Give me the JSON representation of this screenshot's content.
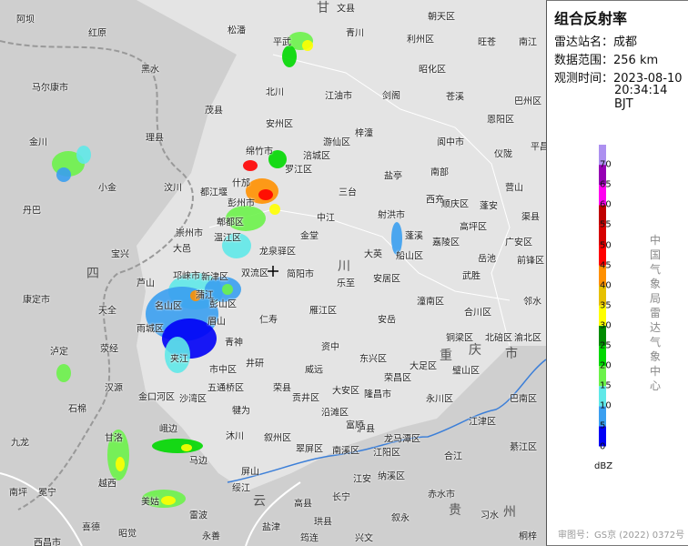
{
  "panel": {
    "title": "组合反射率",
    "station_label": "雷达站名：",
    "station": "成都",
    "range_label": "数据范围：",
    "range": "256 km",
    "time_label": "观测时间：",
    "date": "2023-08-10",
    "time": "20:34:14 BJT",
    "agency": "中国气象局雷达气象中心",
    "unit": "dBZ",
    "approval": "审图号：GS京 (2022) 0372号"
  },
  "legend": {
    "ticks": [
      "0",
      "5",
      "10",
      "15",
      "20",
      "25",
      "30",
      "35",
      "40",
      "45",
      "50",
      "55",
      "60",
      "65",
      "70"
    ],
    "colors": [
      "#0000f6",
      "#3a9ff0",
      "#5fe8e8",
      "#6cf24a",
      "#00d800",
      "#008c00",
      "#ffff00",
      "#e6c000",
      "#ff9000",
      "#ff0000",
      "#d60000",
      "#c00000",
      "#ff00f0",
      "#9600b4",
      "#ad90f0"
    ]
  },
  "map": {
    "provinces": [
      "甘",
      "四",
      "川",
      "重",
      "庆",
      "市",
      "云",
      "贵",
      "州"
    ],
    "cities": [
      "阿坝",
      "红原",
      "松潘",
      "平武",
      "青川",
      "朝天区",
      "利州区",
      "旺苍",
      "南江",
      "黑水",
      "北川",
      "江油市",
      "剑阁",
      "昭化区",
      "苍溪",
      "巴州区",
      "马尔康市",
      "茂县",
      "安州区",
      "梓潼",
      "恩阳区",
      "金川",
      "理县",
      "绵竹市",
      "涪城区",
      "游仙区",
      "阆中市",
      "仪陇",
      "平昌",
      "小金",
      "汶川",
      "什邡",
      "罗江区",
      "盐亭",
      "南部",
      "营山",
      "丹巴",
      "都江堰",
      "彭州市",
      "中江",
      "三台",
      "西充",
      "蓬安",
      "渠县",
      "郫都区",
      "射洪市",
      "顺庆区",
      "高坪区",
      "崇州市",
      "温江区",
      "金堂",
      "蓬溪",
      "嘉陵区",
      "广安区",
      "大邑",
      "龙泉驿区",
      "大英",
      "船山区",
      "岳池",
      "前锋区",
      "宝兴",
      "邛崃市",
      "新津区",
      "双流区",
      "简阳市",
      "乐至",
      "安居区",
      "武胜",
      "芦山",
      "蒲江",
      "邻水",
      "康定市",
      "天全",
      "名山区",
      "彭山区",
      "仁寿",
      "雁江区",
      "安岳",
      "潼南区",
      "合川区",
      "北碚区",
      "雨城区",
      "眉山",
      "青神",
      "资中",
      "铜梁区",
      "渝北区",
      "泸定",
      "荥经",
      "东兴区",
      "夹江",
      "井研",
      "市中区",
      "大足区",
      "璧山区",
      "汉源",
      "五通桥区",
      "荣县",
      "威远",
      "贡井区",
      "隆昌市",
      "荣昌区",
      "金口河区",
      "沙湾区",
      "大安区",
      "永川区",
      "巴南区",
      "石棉",
      "犍为",
      "沿滩区",
      "江津区",
      "富顺",
      "九龙",
      "甘洛",
      "峨边",
      "沐川",
      "叙州区",
      "泸县",
      "马边",
      "翠屏区",
      "南溪区",
      "江阳区",
      "龙马潭区",
      "綦江区",
      "越西",
      "屏山",
      "合江",
      "冕宁",
      "美姑",
      "雷波",
      "绥江",
      "长宁",
      "江安",
      "纳溪区",
      "赤水市",
      "习水",
      "叙永",
      "高县",
      "喜德",
      "昭觉",
      "西昌市",
      "盐津",
      "珙县",
      "筠连",
      "兴文",
      "桐梓",
      "永善",
      "文县",
      "南坪"
    ]
  }
}
